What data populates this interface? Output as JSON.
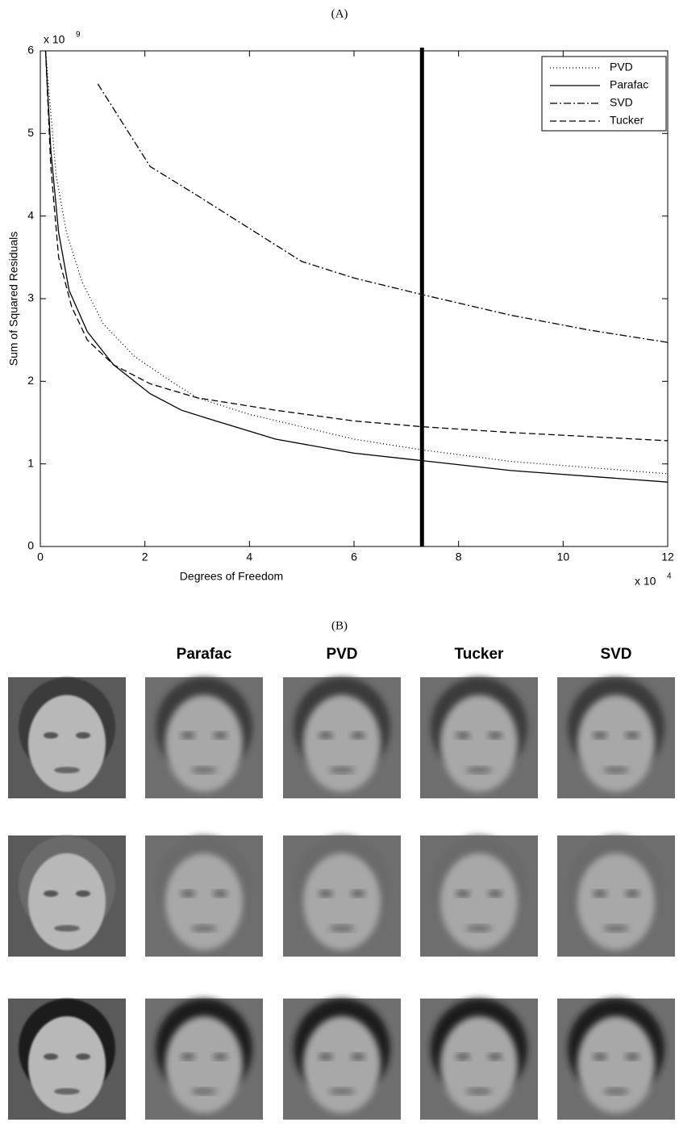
{
  "chart_data": {
    "type": "line",
    "title": "(A)",
    "xlabel": "Degrees of Freedom",
    "ylabel": "Sum of Squared Residuals",
    "x_scale_label": "x 10",
    "x_scale_exponent": "4",
    "y_scale_label": "x 10",
    "y_scale_exponent": "9",
    "xlim": [
      0,
      12
    ],
    "ylim": [
      0,
      6
    ],
    "xticks": [
      0,
      2,
      4,
      6,
      8,
      10,
      12
    ],
    "yticks": [
      0,
      1,
      2,
      3,
      4,
      5,
      6
    ],
    "vline": 7.3,
    "legend": "upper right",
    "grid": false,
    "series": [
      {
        "name": "PVD",
        "color": "#000000",
        "style": "dotted",
        "x": [
          0.1,
          0.3,
          0.5,
          0.8,
          1.2,
          1.8,
          2.5,
          3,
          4,
          5,
          6,
          7.3,
          9,
          12
        ],
        "values": [
          6.0,
          4.5,
          3.8,
          3.2,
          2.7,
          2.3,
          2.0,
          1.8,
          1.6,
          1.45,
          1.3,
          1.17,
          1.03,
          0.88
        ]
      },
      {
        "name": "Parafac",
        "color": "#000000",
        "style": "solid",
        "x": [
          0.1,
          0.2,
          0.35,
          0.55,
          0.9,
          1.4,
          2.1,
          2.7,
          3.2,
          4.5,
          6,
          7.3,
          9,
          12
        ],
        "values": [
          6.0,
          4.8,
          3.8,
          3.1,
          2.6,
          2.2,
          1.85,
          1.65,
          1.55,
          1.3,
          1.13,
          1.04,
          0.92,
          0.78
        ]
      },
      {
        "name": "SVD",
        "color": "#000000",
        "style": "dashdot",
        "x": [
          1.1,
          2.1,
          3,
          4,
          5,
          6,
          7.3,
          9,
          10.5,
          12
        ],
        "values": [
          5.6,
          4.6,
          4.25,
          3.85,
          3.45,
          3.25,
          3.05,
          2.8,
          2.62,
          2.47
        ]
      },
      {
        "name": "Tucker",
        "color": "#000000",
        "style": "dashed",
        "x": [
          0.1,
          0.2,
          0.35,
          0.6,
          0.9,
          1.4,
          2.1,
          3,
          4.5,
          6,
          7.3,
          9,
          12
        ],
        "values": [
          6.0,
          4.6,
          3.5,
          2.9,
          2.5,
          2.2,
          1.97,
          1.8,
          1.65,
          1.52,
          1.45,
          1.38,
          1.28
        ]
      }
    ]
  },
  "panel_b": {
    "label": "(B)",
    "columns": [
      "Parafac",
      "PVD",
      "Tucker",
      "SVD"
    ]
  }
}
